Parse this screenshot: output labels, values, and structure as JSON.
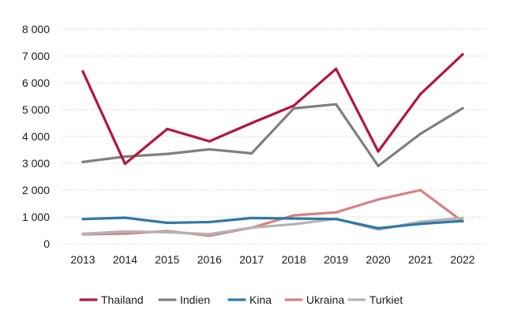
{
  "chart_data": {
    "type": "line",
    "title": "",
    "xlabel": "",
    "ylabel": "",
    "x": [
      "2013",
      "2014",
      "2015",
      "2016",
      "2017",
      "2018",
      "2019",
      "2020",
      "2021",
      "2022"
    ],
    "ylim": [
      0,
      8000
    ],
    "yticks": [
      0,
      1000,
      2000,
      3000,
      4000,
      5000,
      6000,
      7000,
      8000
    ],
    "ytick_labels": [
      "0",
      "1 000",
      "2 000",
      "3 000",
      "4 000",
      "5 000",
      "6 000",
      "7 000",
      "8 000"
    ],
    "grid": true,
    "legend_position": "bottom",
    "series": [
      {
        "name": "Indien",
        "color": "#7f7f7f",
        "values": [
          3050,
          3250,
          3350,
          3520,
          3370,
          5050,
          5200,
          2900,
          4100,
          5050
        ]
      },
      {
        "name": "Ukraina",
        "color": "#d68183",
        "values": [
          350,
          380,
          470,
          300,
          600,
          1060,
          1170,
          1650,
          2000,
          830
        ]
      },
      {
        "name": "Turkiet",
        "color": "#b3b3b3",
        "values": [
          370,
          460,
          430,
          360,
          600,
          730,
          930,
          530,
          820,
          960
        ]
      },
      {
        "name": "Kina",
        "color": "#2f78a8",
        "values": [
          920,
          970,
          780,
          810,
          960,
          940,
          920,
          580,
          740,
          850
        ]
      },
      {
        "name": "Thailand",
        "color": "#b5153a",
        "values": [
          6420,
          2980,
          4280,
          3820,
          4500,
          5150,
          6520,
          3440,
          5580,
          7060
        ]
      }
    ],
    "legend_order": [
      "Thailand",
      "Indien",
      "Kina",
      "Ukraina",
      "Turkiet"
    ]
  }
}
